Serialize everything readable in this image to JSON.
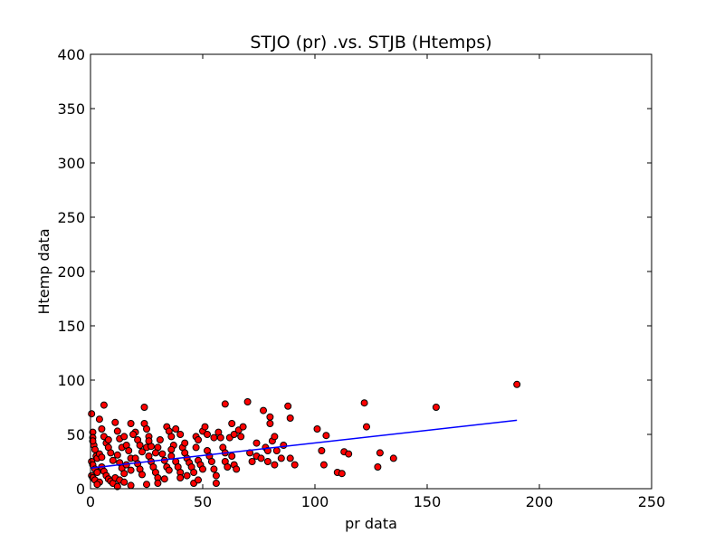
{
  "chart_data": {
    "type": "scatter",
    "title": "STJO (pr) .vs. STJB (Htemps)",
    "xlabel": "pr data",
    "ylabel": "Htemp data",
    "xlim": [
      0,
      250
    ],
    "ylim": [
      0,
      400
    ],
    "xticks": [
      "0",
      "50",
      "100",
      "150",
      "200",
      "250"
    ],
    "yticks": [
      "0",
      "50",
      "100",
      "150",
      "200",
      "250",
      "300",
      "350",
      "400"
    ],
    "grid": false,
    "legend": "none",
    "colors": {
      "points": "#ff0000",
      "point_edge": "#000000",
      "fit_line": "#0000ff",
      "axes": "#000000"
    },
    "series": [
      {
        "kind": "scatter",
        "points": [
          [
            0.5,
            69
          ],
          [
            1,
            52
          ],
          [
            1,
            47
          ],
          [
            1.5,
            40
          ],
          [
            2,
            36
          ],
          [
            2.5,
            30
          ],
          [
            3,
            28
          ],
          [
            0.5,
            25
          ],
          [
            1,
            22
          ],
          [
            2,
            18
          ],
          [
            3,
            15
          ],
          [
            0.5,
            12
          ],
          [
            1,
            10
          ],
          [
            2,
            8
          ],
          [
            4,
            6
          ],
          [
            1,
            44
          ],
          [
            4,
            64
          ],
          [
            5,
            55
          ],
          [
            6,
            77
          ],
          [
            6,
            48
          ],
          [
            7,
            42
          ],
          [
            8,
            38
          ],
          [
            9,
            33
          ],
          [
            10,
            26
          ],
          [
            5,
            20
          ],
          [
            6,
            16
          ],
          [
            7,
            12
          ],
          [
            8,
            9
          ],
          [
            9,
            7
          ],
          [
            10,
            5
          ],
          [
            4,
            32
          ],
          [
            5,
            29
          ],
          [
            11,
            61
          ],
          [
            12,
            53
          ],
          [
            13,
            46
          ],
          [
            14,
            38
          ],
          [
            12,
            31
          ],
          [
            13,
            24
          ],
          [
            14,
            19
          ],
          [
            15,
            14
          ],
          [
            11,
            10
          ],
          [
            13,
            8
          ],
          [
            15,
            6
          ],
          [
            16,
            40
          ],
          [
            17,
            35
          ],
          [
            18,
            28
          ],
          [
            16,
            22
          ],
          [
            18,
            17
          ],
          [
            20,
            52
          ],
          [
            21,
            45
          ],
          [
            22,
            40
          ],
          [
            23,
            34
          ],
          [
            20,
            28
          ],
          [
            21,
            23
          ],
          [
            22,
            18
          ],
          [
            23,
            13
          ],
          [
            24,
            75
          ],
          [
            24,
            60
          ],
          [
            25,
            55
          ],
          [
            26,
            48
          ],
          [
            25,
            38
          ],
          [
            26,
            30
          ],
          [
            27,
            25
          ],
          [
            28,
            20
          ],
          [
            29,
            15
          ],
          [
            30,
            10
          ],
          [
            30,
            38
          ],
          [
            31,
            45
          ],
          [
            32,
            32
          ],
          [
            33,
            26
          ],
          [
            34,
            20
          ],
          [
            35,
            17
          ],
          [
            34,
            57
          ],
          [
            35,
            53
          ],
          [
            36,
            48
          ],
          [
            37,
            40
          ],
          [
            36,
            30
          ],
          [
            38,
            25
          ],
          [
            39,
            20
          ],
          [
            40,
            15
          ],
          [
            38,
            55
          ],
          [
            40,
            50
          ],
          [
            41,
            38
          ],
          [
            42,
            33
          ],
          [
            43,
            28
          ],
          [
            44,
            24
          ],
          [
            45,
            20
          ],
          [
            46,
            15
          ],
          [
            47,
            48
          ],
          [
            47,
            38
          ],
          [
            48,
            45
          ],
          [
            48,
            26
          ],
          [
            49,
            22
          ],
          [
            50,
            18
          ],
          [
            50,
            53
          ],
          [
            51,
            57
          ],
          [
            52,
            50
          ],
          [
            52,
            35
          ],
          [
            53,
            30
          ],
          [
            54,
            25
          ],
          [
            55,
            18
          ],
          [
            56,
            12
          ],
          [
            56,
            5
          ],
          [
            55,
            47
          ],
          [
            57,
            52
          ],
          [
            58,
            47
          ],
          [
            59,
            38
          ],
          [
            60,
            33
          ],
          [
            60,
            25
          ],
          [
            61,
            20
          ],
          [
            60,
            78
          ],
          [
            62,
            47
          ],
          [
            63,
            60
          ],
          [
            64,
            50
          ],
          [
            63,
            30
          ],
          [
            64,
            22
          ],
          [
            65,
            18
          ],
          [
            66,
            54
          ],
          [
            67,
            48
          ],
          [
            68,
            57
          ],
          [
            70,
            80
          ],
          [
            71,
            33
          ],
          [
            72,
            25
          ],
          [
            74,
            42
          ],
          [
            74,
            30
          ],
          [
            76,
            28
          ],
          [
            77,
            72
          ],
          [
            78,
            38
          ],
          [
            79,
            35
          ],
          [
            79,
            25
          ],
          [
            80,
            60
          ],
          [
            80,
            66
          ],
          [
            81,
            44
          ],
          [
            82,
            48
          ],
          [
            82,
            22
          ],
          [
            83,
            35
          ],
          [
            85,
            28
          ],
          [
            86,
            40
          ],
          [
            88,
            76
          ],
          [
            89,
            65
          ],
          [
            89,
            28
          ],
          [
            91,
            22
          ],
          [
            101,
            55
          ],
          [
            103,
            35
          ],
          [
            104,
            22
          ],
          [
            105,
            49
          ],
          [
            110,
            15
          ],
          [
            112,
            14
          ],
          [
            113,
            34
          ],
          [
            115,
            32
          ],
          [
            122,
            79
          ],
          [
            123,
            57
          ],
          [
            128,
            20
          ],
          [
            129,
            33
          ],
          [
            135,
            28
          ],
          [
            154,
            75
          ],
          [
            190,
            96
          ],
          [
            46,
            5
          ],
          [
            48,
            8
          ],
          [
            3,
            4
          ],
          [
            12,
            2
          ],
          [
            18,
            3
          ],
          [
            25,
            4
          ],
          [
            30,
            5
          ],
          [
            33,
            9
          ],
          [
            40,
            10
          ],
          [
            43,
            12
          ],
          [
            8,
            45
          ],
          [
            15,
            48
          ],
          [
            19,
            50
          ],
          [
            27,
            39
          ],
          [
            29,
            33
          ],
          [
            36,
            36
          ],
          [
            42,
            42
          ],
          [
            18,
            60
          ],
          [
            26,
            44
          ]
        ]
      },
      {
        "kind": "line",
        "x": [
          0,
          190
        ],
        "y": [
          19,
          63
        ]
      }
    ]
  }
}
